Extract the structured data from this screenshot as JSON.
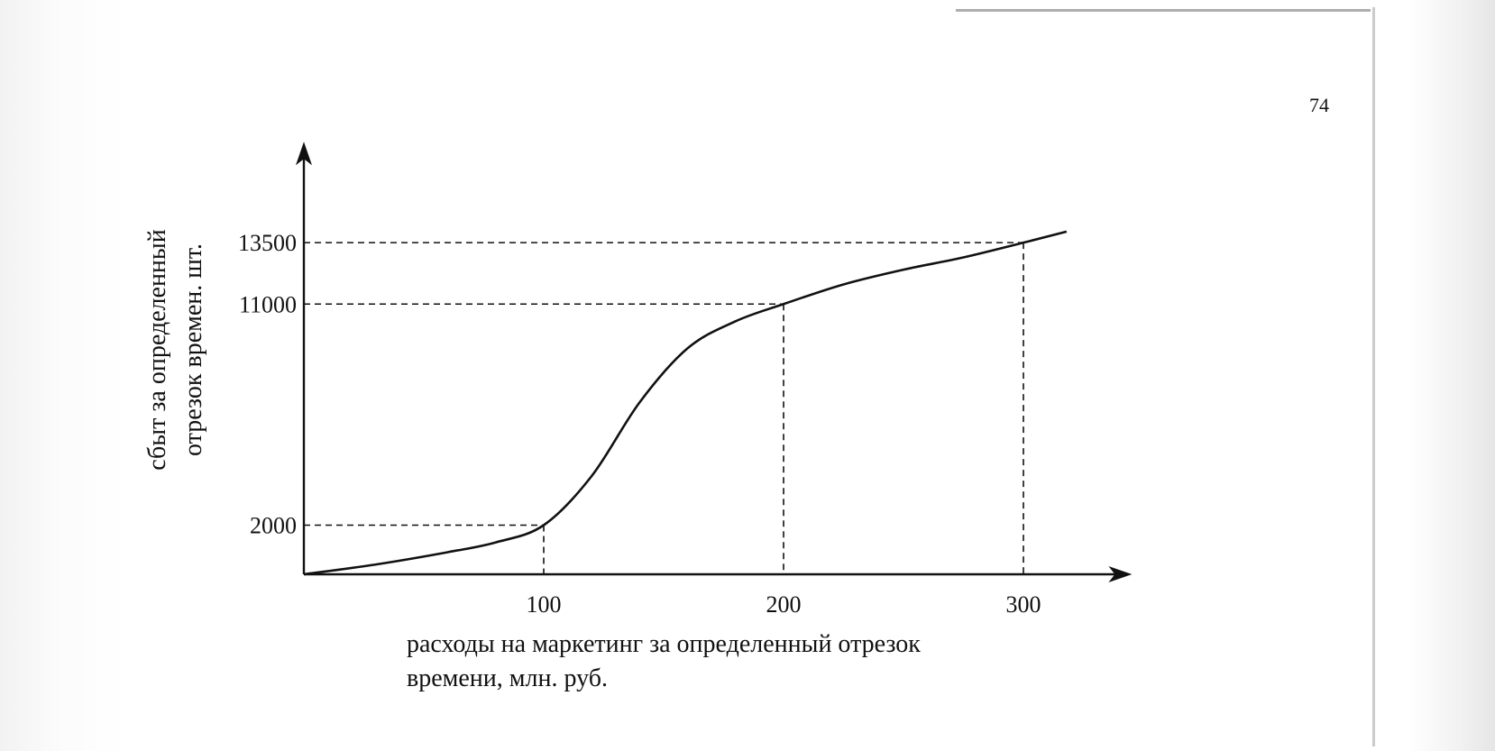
{
  "page_number": "74",
  "chart_data": {
    "type": "line",
    "xlabel_lines": [
      "расходы на маркетинг за определенный отрезок",
      "времени, млн. руб."
    ],
    "ylabel_lines": [
      "сбыт за определенный",
      "отрезок времен. шт."
    ],
    "x_ticks": [
      "100",
      "200",
      "300"
    ],
    "y_ticks": [
      "2000",
      "11000",
      "13500"
    ],
    "xlim": [
      0,
      340
    ],
    "ylim": [
      0,
      16800
    ],
    "grid": false,
    "series": [
      {
        "x": [
          0,
          30,
          60,
          80,
          100,
          120,
          140,
          160,
          180,
          200,
          225,
          250,
          275,
          300,
          318
        ],
        "y": [
          0,
          400,
          900,
          1300,
          2000,
          4000,
          7000,
          9200,
          10300,
          11000,
          11800,
          12400,
          12900,
          13500,
          13950
        ]
      }
    ],
    "reference_points": [
      {
        "x": 100,
        "y": 2000
      },
      {
        "x": 200,
        "y": 11000
      },
      {
        "x": 300,
        "y": 13500
      }
    ]
  }
}
